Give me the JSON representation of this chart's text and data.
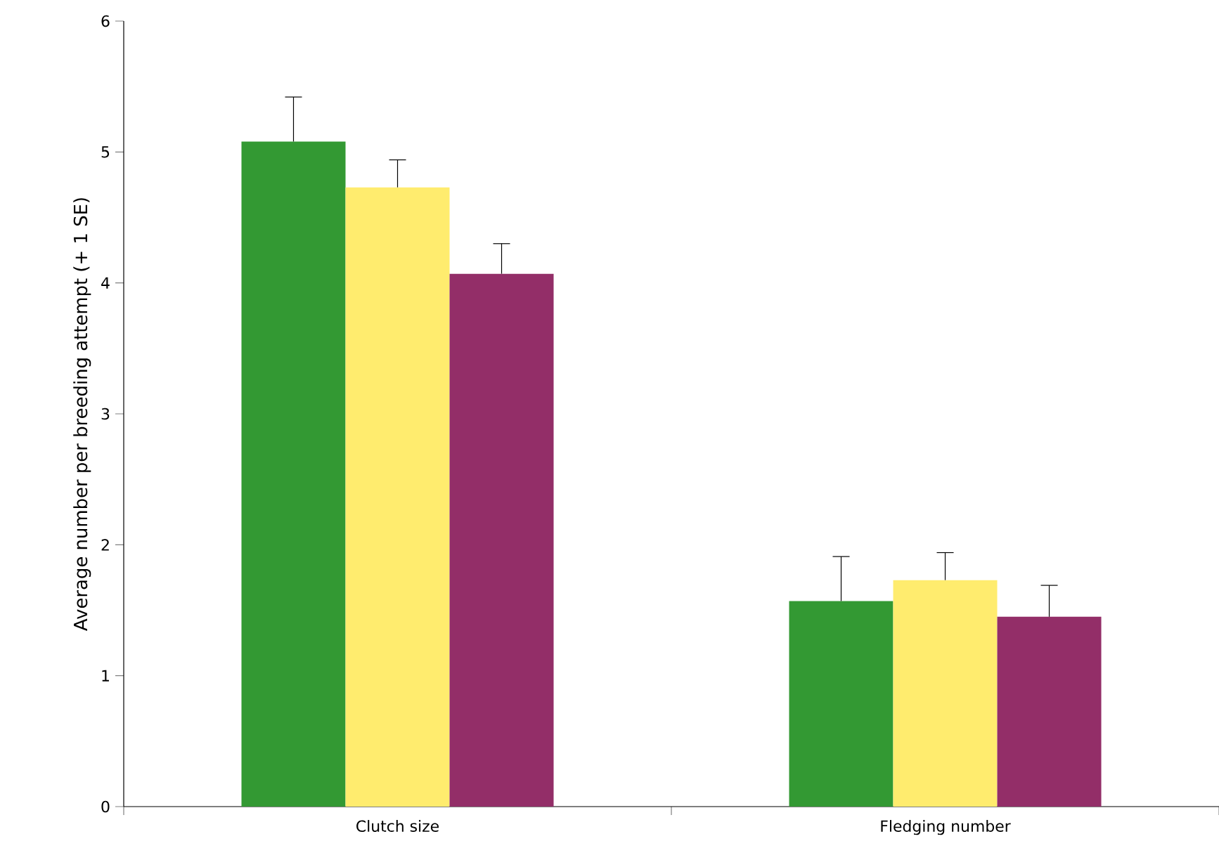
{
  "chart_data": {
    "type": "bar",
    "ylabel": "Average number per breeding attempt (+ 1 SE)",
    "categories": [
      "Clutch size",
      "Fledging number"
    ],
    "series": [
      {
        "color": "#339933",
        "values": [
          5.08,
          1.57
        ],
        "errors": [
          [
            5.08,
            5.42
          ],
          [
            1.57,
            1.91
          ]
        ]
      },
      {
        "color": "#ffec6e",
        "values": [
          4.73,
          1.73
        ],
        "errors": [
          [
            4.73,
            4.94
          ],
          [
            1.73,
            1.94
          ]
        ]
      },
      {
        "color": "#932e68",
        "values": [
          4.07,
          1.45
        ],
        "errors": [
          [
            4.07,
            4.3
          ],
          [
            1.45,
            1.69
          ]
        ]
      }
    ],
    "ylim": [
      0,
      6
    ],
    "yticks": [
      0,
      1,
      2,
      3,
      4,
      5,
      6
    ],
    "grid": false
  }
}
